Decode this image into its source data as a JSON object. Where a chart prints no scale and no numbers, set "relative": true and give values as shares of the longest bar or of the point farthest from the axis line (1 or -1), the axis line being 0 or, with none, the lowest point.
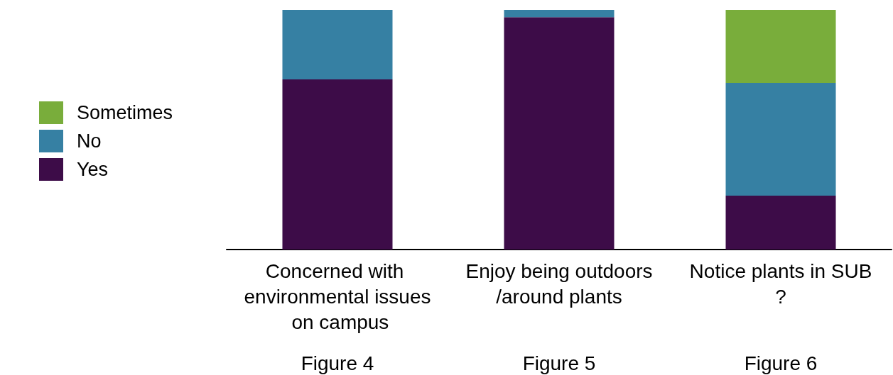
{
  "chart_data": {
    "type": "bar",
    "stacked": true,
    "relative": true,
    "legend": "left",
    "categories": [
      "Concerned with environmental issues on campus",
      "Enjoy being outdoors/around plants",
      "Notice plants in SUB?"
    ],
    "series": [
      {
        "name": "Yes",
        "color": "#3d0c48",
        "values": [
          0.71,
          0.97,
          0.225
        ]
      },
      {
        "name": "No",
        "color": "#3680a3",
        "values": [
          0.29,
          0.03,
          0.47
        ]
      },
      {
        "name": "Sometimes",
        "color": "#79ad3b",
        "values": [
          null,
          null,
          0.305
        ]
      }
    ],
    "annotations": [
      "Figure 4",
      "Figure 5",
      "Figure 6"
    ]
  }
}
